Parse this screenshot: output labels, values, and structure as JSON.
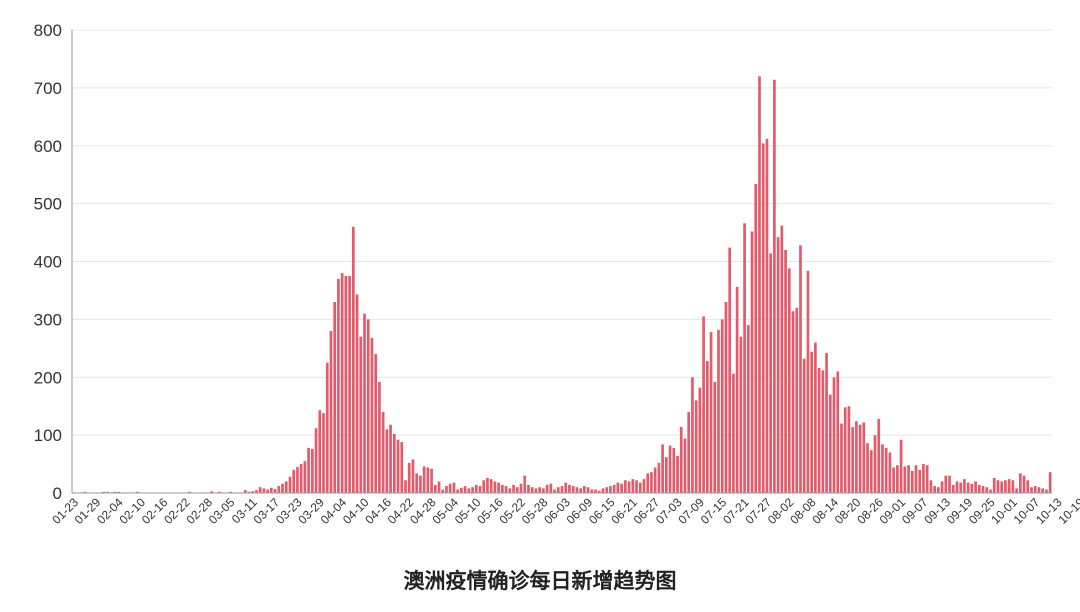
{
  "chart_data": {
    "type": "bar",
    "title": "澳洲疫情确诊每日新增趋势图",
    "xlabel": "",
    "ylabel": "",
    "ylim": [
      0,
      800
    ],
    "yticks": [
      "0",
      "100",
      "200",
      "300",
      "400",
      "500",
      "600",
      "700",
      "800"
    ],
    "grid": true,
    "bar_color": "#e35a6b",
    "x_start": "01-23",
    "x_tick_labels": [
      "01-23",
      "01-29",
      "02-04",
      "02-10",
      "02-16",
      "02-22",
      "02-28",
      "03-05",
      "03-11",
      "03-17",
      "03-23",
      "03-29",
      "04-04",
      "04-10",
      "04-16",
      "04-22",
      "04-28",
      "05-04",
      "05-10",
      "05-16",
      "05-22",
      "05-28",
      "06-03",
      "06-09",
      "06-15",
      "06-21",
      "06-27",
      "07-03",
      "07-09",
      "07-15",
      "07-21",
      "07-27",
      "08-02",
      "08-08",
      "08-14",
      "08-20",
      "08-26",
      "09-01",
      "09-07",
      "09-13",
      "09-19",
      "09-25",
      "10-01",
      "10-07",
      "10-13",
      "10-19"
    ],
    "values": [
      1,
      0,
      1,
      2,
      0,
      0,
      1,
      0,
      2,
      2,
      1,
      2,
      2,
      0,
      1,
      0,
      1,
      2,
      0,
      0,
      0,
      0,
      0,
      0,
      0,
      0,
      0,
      0,
      0,
      0,
      0,
      2,
      0,
      0,
      0,
      1,
      0,
      3,
      0,
      2,
      1,
      0,
      2,
      0,
      1,
      0,
      5,
      2,
      3,
      5,
      10,
      8,
      6,
      9,
      7,
      12,
      16,
      20,
      28,
      40,
      45,
      50,
      55,
      78,
      76,
      112,
      143,
      138,
      225,
      280,
      330,
      370,
      380,
      375,
      375,
      460,
      343,
      270,
      310,
      300,
      268,
      240,
      192,
      140,
      110,
      118,
      102,
      92,
      88,
      22,
      52,
      58,
      34,
      30,
      46,
      44,
      42,
      14,
      20,
      6,
      12,
      16,
      18,
      6,
      9,
      12,
      8,
      10,
      14,
      12,
      22,
      26,
      24,
      20,
      18,
      14,
      12,
      8,
      14,
      10,
      16,
      30,
      14,
      10,
      8,
      10,
      8,
      14,
      16,
      6,
      10,
      12,
      18,
      14,
      12,
      10,
      8,
      12,
      10,
      6,
      6,
      4,
      8,
      10,
      12,
      14,
      18,
      16,
      22,
      20,
      24,
      22,
      18,
      24,
      34,
      36,
      44,
      52,
      84,
      62,
      82,
      78,
      64,
      114,
      94,
      140,
      200,
      160,
      182,
      305,
      228,
      278,
      192,
      282,
      300,
      330,
      424,
      206,
      356,
      270,
      466,
      290,
      452,
      534,
      720,
      604,
      612,
      414,
      714,
      442,
      462,
      420,
      388,
      314,
      320,
      428,
      232,
      384,
      244,
      260,
      216,
      212,
      242,
      170,
      200,
      210,
      120,
      148,
      150,
      114,
      124,
      118,
      122,
      86,
      74,
      100,
      128,
      84,
      78,
      70,
      44,
      48,
      92,
      46,
      48,
      38,
      48,
      40,
      50,
      48,
      22,
      12,
      10,
      20,
      30,
      30,
      14,
      20,
      18,
      24,
      18,
      16,
      20,
      14,
      12,
      10,
      6,
      26,
      22,
      20,
      22,
      24,
      22,
      8,
      34,
      30,
      22,
      10,
      12,
      10,
      8,
      6,
      36
    ]
  }
}
